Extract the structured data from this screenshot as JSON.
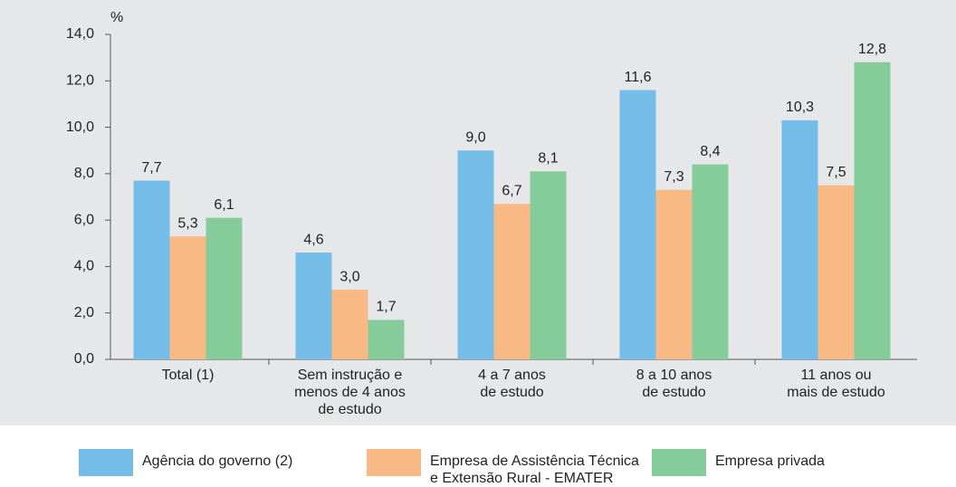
{
  "chart_data": {
    "type": "bar",
    "ylabel": "%",
    "categories": [
      "Total (1)",
      "Sem instrução e\nmenos de 4 anos\nde estudo",
      "4 a 7 anos\nde estudo",
      "8 a 10 anos\nde estudo",
      "11 anos ou\nmais de estudo"
    ],
    "series": [
      {
        "name": "Agência do governo (2)",
        "color": "#74bde8",
        "values": [
          7.7,
          4.6,
          9.0,
          11.6,
          10.3
        ],
        "value_labels": [
          "7,7",
          "4,6",
          "9,0",
          "11,6",
          "10,3"
        ]
      },
      {
        "name": "Empresa de Assistência Técnica\ne Extensão Rural - EMATER",
        "color": "#f9b984",
        "values": [
          5.3,
          3.0,
          6.7,
          7.3,
          7.5
        ],
        "value_labels": [
          "5,3",
          "3,0",
          "6,7",
          "7,3",
          "7,5"
        ]
      },
      {
        "name": "Empresa privada",
        "color": "#84cc9a",
        "values": [
          6.1,
          1.7,
          8.1,
          8.4,
          12.8
        ],
        "value_labels": [
          "6,1",
          "1,7",
          "8,1",
          "8,4",
          "12,8"
        ]
      }
    ],
    "ylim": [
      0,
      14
    ],
    "yticks": [
      {
        "value": 0,
        "label": "0,0"
      },
      {
        "value": 2,
        "label": "2,0"
      },
      {
        "value": 4,
        "label": "4,0"
      },
      {
        "value": 6,
        "label": "6,0"
      },
      {
        "value": 8,
        "label": "8,0"
      },
      {
        "value": 10,
        "label": "10,0"
      },
      {
        "value": 12,
        "label": "12,0"
      },
      {
        "value": 14,
        "label": "14,0"
      }
    ],
    "grid": false
  }
}
